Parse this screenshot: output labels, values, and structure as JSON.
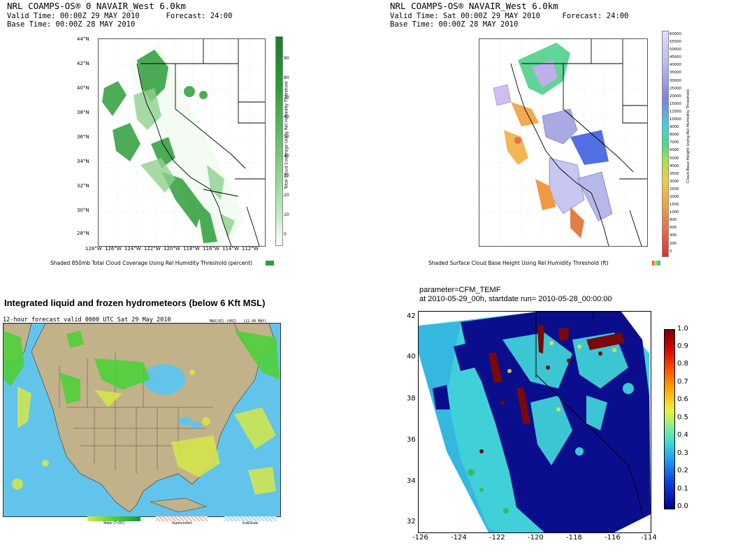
{
  "panel_tl": {
    "line1": "NRL COAMPS-OS® 0 NAVAIR_West 6.0km",
    "line2": "Valid Time: 00:00Z 29 MAY 2010      Forecast: 24:00",
    "line3": "Base Time: 00:00Z 28 MAY 2010",
    "lat_ticks": [
      "44°N",
      "42°N",
      "40°N",
      "38°N",
      "36°N",
      "34°N",
      "32°N",
      "30°N",
      "28°N"
    ],
    "lon_ticks": [
      "128°W",
      "126°W",
      "124°W",
      "122°W",
      "120°W",
      "118°W",
      "116°W",
      "114°W",
      "112°W"
    ],
    "colorbar_ticks": [
      "90",
      "80",
      "70",
      "60",
      "50",
      "40",
      "30",
      "20",
      "10",
      "0"
    ],
    "colorbar_label": "Total Cloud Coverage Using Rel Humidity Threshold",
    "caption": "Shaded 850mb Total Cloud Coverage Using Rel Humidity Threshold (percent)",
    "cloud_color": "#2e9e3a"
  },
  "panel_tr": {
    "line1": "NRL COAMPS-OS® NAVAIR_West 6.0km",
    "line2": "Valid Time: Sat 00:00Z 29 MAY 2010     Forecast: 24:00",
    "line3": "Base Time: 00:00Z 28 MAY 2010",
    "colorbar_ticks": [
      "60000",
      "55000",
      "50000",
      "45000",
      "40000",
      "35000",
      "30000",
      "25000",
      "20000",
      "15000",
      "12500",
      "10000",
      "9000",
      "8000",
      "7000",
      "6000",
      "5000",
      "4000",
      "3500",
      "3000",
      "2500",
      "2000",
      "1500",
      "1000",
      "800",
      "600",
      "400",
      "200",
      "0"
    ],
    "colorbar_label": "Cloud Base Height Using Rel Humidity Threshold",
    "caption": "Shaded Surface Cloud Base Height Using Rel Humidity Threshold (ft)"
  },
  "panel_bl": {
    "title": "Integrated liquid and frozen hydrometeors (below 6 Kft MSL)",
    "subtitle": "12-hour forecast valid 0000 UTC Sat 29 May 2010",
    "subtitle_right": "MAX(9Z)-(00Z)   (12 00 MAY)",
    "legend": [
      "Water (T>0C)",
      "Supercooled",
      "Ice&Snow"
    ],
    "land_color": "#c2b28a",
    "ocean_color": "#62c4ea"
  },
  "panel_br": {
    "line1": "parameter=CFM_TEMF",
    "line2": "at 2010-05-29_00h, startdate run= 2010-05-28_00:00:00",
    "y_ticks": [
      "42",
      "40",
      "38",
      "36",
      "34",
      "32"
    ],
    "x_ticks": [
      "-126",
      "-124",
      "-122",
      "-120",
      "-118",
      "-116",
      "-114"
    ],
    "colorbar_ticks": [
      "1.0",
      "0.9",
      "0.8",
      "0.7",
      "0.6",
      "0.5",
      "0.4",
      "0.3",
      "0.2",
      "0.1",
      "0.0"
    ]
  }
}
